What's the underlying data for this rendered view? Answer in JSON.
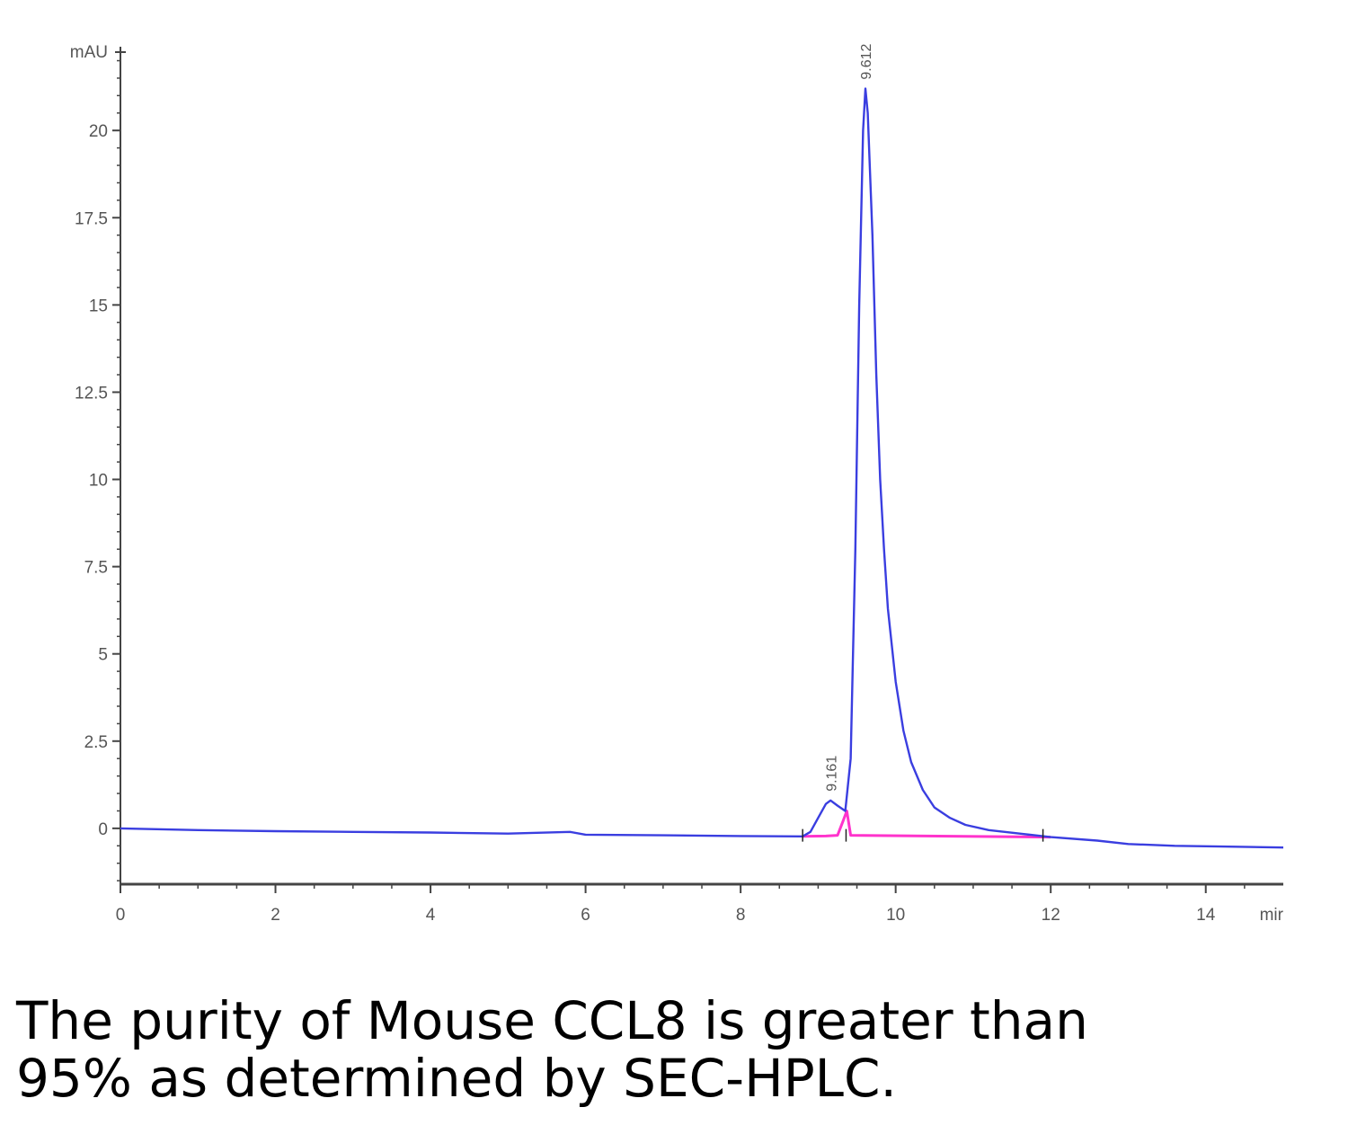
{
  "chart_data": {
    "type": "line",
    "ylabel": "mAU",
    "xlabel": "mir",
    "xlim": [
      0,
      15
    ],
    "ylim": [
      -1.6,
      22.4
    ],
    "x_ticks": [
      {
        "value": 0,
        "label": "0"
      },
      {
        "value": 2,
        "label": "2"
      },
      {
        "value": 4,
        "label": "4"
      },
      {
        "value": 6,
        "label": "6"
      },
      {
        "value": 8,
        "label": "8"
      },
      {
        "value": 10,
        "label": "10"
      },
      {
        "value": 12,
        "label": "12"
      },
      {
        "value": 14,
        "label": "14"
      }
    ],
    "y_ticks": [
      {
        "value": 0,
        "label": "0"
      },
      {
        "value": 2.5,
        "label": "2.5"
      },
      {
        "value": 5,
        "label": "5"
      },
      {
        "value": 7.5,
        "label": "7.5"
      },
      {
        "value": 10,
        "label": "10"
      },
      {
        "value": 12.5,
        "label": "12.5"
      },
      {
        "value": 15,
        "label": "15"
      },
      {
        "value": 17.5,
        "label": "17.5"
      },
      {
        "value": 20,
        "label": "20"
      }
    ],
    "series": [
      {
        "color": "#3a3ee0",
        "points": [
          [
            0,
            0.0
          ],
          [
            1,
            -0.05
          ],
          [
            2,
            -0.08
          ],
          [
            3,
            -0.1
          ],
          [
            4,
            -0.12
          ],
          [
            5,
            -0.15
          ],
          [
            5.8,
            -0.1
          ],
          [
            6,
            -0.18
          ],
          [
            7,
            -0.2
          ],
          [
            8,
            -0.22
          ],
          [
            8.8,
            -0.23
          ],
          [
            8.9,
            -0.1
          ],
          [
            9.0,
            0.3
          ],
          [
            9.1,
            0.7
          ],
          [
            9.16,
            0.8
          ],
          [
            9.25,
            0.65
          ],
          [
            9.35,
            0.5
          ],
          [
            9.42,
            2.0
          ],
          [
            9.48,
            8.0
          ],
          [
            9.53,
            15.0
          ],
          [
            9.58,
            20.0
          ],
          [
            9.61,
            21.2
          ],
          [
            9.64,
            20.5
          ],
          [
            9.7,
            17.0
          ],
          [
            9.75,
            13.0
          ],
          [
            9.8,
            10.0
          ],
          [
            9.85,
            8.0
          ],
          [
            9.9,
            6.3
          ],
          [
            10.0,
            4.2
          ],
          [
            10.1,
            2.8
          ],
          [
            10.2,
            1.9
          ],
          [
            10.35,
            1.1
          ],
          [
            10.5,
            0.6
          ],
          [
            10.7,
            0.3
          ],
          [
            10.9,
            0.1
          ],
          [
            11.2,
            -0.05
          ],
          [
            11.6,
            -0.15
          ],
          [
            12.0,
            -0.25
          ],
          [
            12.6,
            -0.35
          ],
          [
            13.0,
            -0.45
          ],
          [
            13.6,
            -0.5
          ],
          [
            14.2,
            -0.52
          ],
          [
            15.0,
            -0.55
          ]
        ]
      },
      {
        "color": "#ff33cc",
        "points": [
          [
            8.8,
            -0.23
          ],
          [
            9.1,
            -0.22
          ],
          [
            9.25,
            -0.2
          ],
          [
            9.32,
            0.2
          ],
          [
            9.37,
            0.5
          ],
          [
            9.42,
            -0.2
          ],
          [
            12.0,
            -0.25
          ]
        ]
      }
    ],
    "peaks": [
      {
        "rt": 9.161,
        "label": "9.161",
        "height": 0.8
      },
      {
        "rt": 9.612,
        "label": "9.612",
        "height": 21.2
      }
    ],
    "baseline_markers": [
      8.8,
      9.36,
      11.9
    ]
  },
  "caption": {
    "line1": "The purity of Mouse CCL8 is greater than",
    "line2": "95% as determined by SEC-HPLC."
  }
}
